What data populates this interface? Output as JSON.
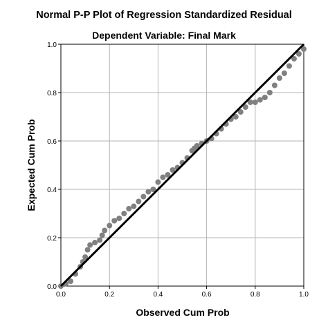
{
  "chart_data": {
    "type": "scatter",
    "title": "Normal P-P Plot of Regression Standardized Residual",
    "subtitle": "Dependent Variable: Final Mark",
    "xlabel": "Observed Cum Prob",
    "ylabel": "Expected Cum Prob",
    "xlim": [
      0,
      1
    ],
    "ylim": [
      0,
      1
    ],
    "xticks": [
      "0.0",
      "0.2",
      "0.4",
      "0.6",
      "0.8",
      "1.0"
    ],
    "yticks": [
      "0.0",
      "0.2",
      "0.4",
      "0.6",
      "0.8",
      "1.0"
    ],
    "grid": true,
    "legend": "none",
    "point_color": "#808080",
    "line_color": "#000000",
    "reference_line": [
      [
        0,
        0
      ],
      [
        1,
        1
      ]
    ],
    "points_observed_vs_expected": [
      [
        0.0,
        0.0
      ],
      [
        0.02,
        0.01
      ],
      [
        0.04,
        0.02
      ],
      [
        0.06,
        0.05
      ],
      [
        0.08,
        0.08
      ],
      [
        0.09,
        0.1
      ],
      [
        0.1,
        0.12
      ],
      [
        0.11,
        0.15
      ],
      [
        0.12,
        0.17
      ],
      [
        0.14,
        0.18
      ],
      [
        0.16,
        0.19
      ],
      [
        0.17,
        0.21
      ],
      [
        0.18,
        0.23
      ],
      [
        0.2,
        0.25
      ],
      [
        0.22,
        0.27
      ],
      [
        0.24,
        0.28
      ],
      [
        0.26,
        0.3
      ],
      [
        0.28,
        0.32
      ],
      [
        0.3,
        0.33
      ],
      [
        0.32,
        0.35
      ],
      [
        0.34,
        0.37
      ],
      [
        0.36,
        0.39
      ],
      [
        0.38,
        0.4
      ],
      [
        0.4,
        0.43
      ],
      [
        0.42,
        0.45
      ],
      [
        0.44,
        0.46
      ],
      [
        0.46,
        0.48
      ],
      [
        0.48,
        0.49
      ],
      [
        0.5,
        0.51
      ],
      [
        0.52,
        0.53
      ],
      [
        0.54,
        0.56
      ],
      [
        0.55,
        0.57
      ],
      [
        0.56,
        0.58
      ],
      [
        0.58,
        0.59
      ],
      [
        0.6,
        0.6
      ],
      [
        0.62,
        0.61
      ],
      [
        0.64,
        0.63
      ],
      [
        0.66,
        0.65
      ],
      [
        0.68,
        0.67
      ],
      [
        0.7,
        0.69
      ],
      [
        0.72,
        0.7
      ],
      [
        0.74,
        0.72
      ],
      [
        0.76,
        0.74
      ],
      [
        0.78,
        0.76
      ],
      [
        0.8,
        0.76
      ],
      [
        0.82,
        0.77
      ],
      [
        0.84,
        0.78
      ],
      [
        0.86,
        0.8
      ],
      [
        0.88,
        0.83
      ],
      [
        0.9,
        0.86
      ],
      [
        0.92,
        0.88
      ],
      [
        0.94,
        0.91
      ],
      [
        0.96,
        0.94
      ],
      [
        0.98,
        0.96
      ],
      [
        1.0,
        0.98
      ]
    ]
  }
}
